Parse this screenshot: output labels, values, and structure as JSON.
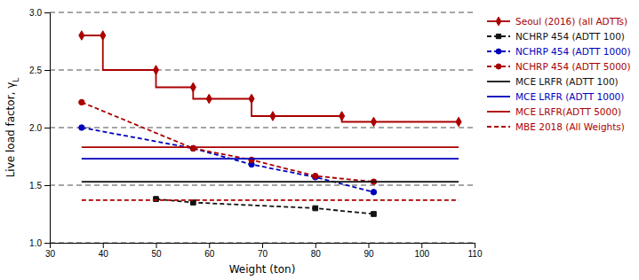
{
  "chart_data": {
    "type": "line",
    "xlabel": "Weight (ton)",
    "ylabel": "Live load factor, γL",
    "xlim": [
      30,
      110
    ],
    "ylim": [
      1,
      3
    ],
    "xticks": [
      30,
      40,
      50,
      60,
      70,
      80,
      90,
      100,
      110
    ],
    "yticks": [
      {
        "value": 1,
        "label": "1.0"
      },
      1.5,
      {
        "value": 2,
        "label": "2.0"
      },
      2.5,
      {
        "value": 3,
        "label": "3.0"
      }
    ],
    "grid": "y",
    "legend": "right",
    "series": [
      {
        "name": "Seoul (2016) (all ADTTs)",
        "type": "step",
        "color": "#aa0000",
        "marker": "diamond",
        "line_style": "solid",
        "x": [
          36,
          40,
          50,
          57,
          60,
          68,
          72,
          85,
          91,
          107
        ],
        "values": [
          2.8,
          2.8,
          2.5,
          2.35,
          2.25,
          2.25,
          2.1,
          2.1,
          2.05,
          2.05
        ]
      },
      {
        "name": "NCHRP 454 (ADTT 100)",
        "type": "line",
        "color": "#111111",
        "marker": "square",
        "line_style": "dashed",
        "x": [
          50,
          57,
          80,
          91
        ],
        "values": [
          1.38,
          1.35,
          1.3,
          1.25
        ]
      },
      {
        "name": "NCHRP 454 (ADTT 1000)",
        "type": "line",
        "color": "#0000bb",
        "marker": "circle",
        "line_style": "dashed",
        "x": [
          36,
          57,
          68,
          80,
          91
        ],
        "values": [
          2.0,
          1.82,
          1.68,
          1.57,
          1.44
        ]
      },
      {
        "name": "NCHRP 454 (ADTT 5000)",
        "type": "line",
        "color": "#aa0000",
        "marker": "circle",
        "line_style": "dashed",
        "x": [
          36,
          57,
          68,
          80,
          91
        ],
        "values": [
          2.22,
          1.82,
          1.72,
          1.58,
          1.53
        ]
      },
      {
        "name": "MCE LRFR (ADTT 100)",
        "type": "line",
        "color": "#111111",
        "line_style": "solid",
        "x": [
          36,
          107
        ],
        "values": [
          1.53,
          1.53
        ]
      },
      {
        "name": "MCE LRFR (ADTT 1000)",
        "type": "line",
        "color": "#0000bb",
        "line_style": "solid",
        "x": [
          36,
          107
        ],
        "values": [
          1.73,
          1.73
        ]
      },
      {
        "name": "MCE LRFR(ADTT 5000)",
        "type": "line",
        "color": "#aa0000",
        "line_style": "solid",
        "x": [
          36,
          107
        ],
        "values": [
          1.83,
          1.83
        ]
      },
      {
        "name": "MBE 2018 (All Weights)",
        "type": "line",
        "color": "#aa0000",
        "line_style": "dashed",
        "x": [
          36,
          107
        ],
        "values": [
          1.37,
          1.37
        ]
      }
    ]
  }
}
